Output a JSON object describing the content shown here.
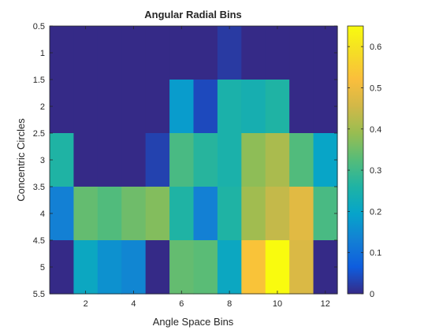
{
  "chart_data": {
    "type": "heatmap",
    "title": "Angular Radial Bins",
    "xlabel": "Angle Space Bins",
    "ylabel": "Concentric Circles",
    "x": [
      1,
      2,
      3,
      4,
      5,
      6,
      7,
      8,
      9,
      10,
      11,
      12
    ],
    "y": [
      1,
      2,
      3,
      4,
      5
    ],
    "xlim": [
      0.5,
      12.5
    ],
    "ylim": [
      0.5,
      5.5
    ],
    "y_direction": "reverse",
    "x_ticks": [
      "2",
      "4",
      "6",
      "8",
      "10",
      "12"
    ],
    "y_ticks": [
      "0.5",
      "1",
      "1.5",
      "2",
      "2.5",
      "3",
      "3.5",
      "4",
      "4.5",
      "5",
      "5.5"
    ],
    "values": [
      [
        0.0,
        0.0,
        0.0,
        0.0,
        0.0,
        0.0,
        0.0,
        0.02,
        0.0,
        0.0,
        0.0,
        0.0
      ],
      [
        0.0,
        0.0,
        0.0,
        0.0,
        0.0,
        0.18,
        0.04,
        0.25,
        0.24,
        0.26,
        0.0,
        0.0
      ],
      [
        0.26,
        0.0,
        0.0,
        0.0,
        0.03,
        0.31,
        0.27,
        0.25,
        0.38,
        0.41,
        0.32,
        0.2
      ],
      [
        0.13,
        0.34,
        0.32,
        0.35,
        0.37,
        0.26,
        0.13,
        0.26,
        0.4,
        0.44,
        0.48,
        0.31
      ],
      [
        0.0,
        0.21,
        0.16,
        0.14,
        0.0,
        0.34,
        0.33,
        0.21,
        0.53,
        0.66,
        0.47,
        0.0
      ]
    ],
    "colorbar": {
      "colormap": "parula",
      "clim": [
        0,
        0.65
      ],
      "ticks": [
        "0",
        "0.1",
        "0.2",
        "0.3",
        "0.4",
        "0.5",
        "0.6"
      ],
      "placement": "right"
    },
    "grid": false
  }
}
